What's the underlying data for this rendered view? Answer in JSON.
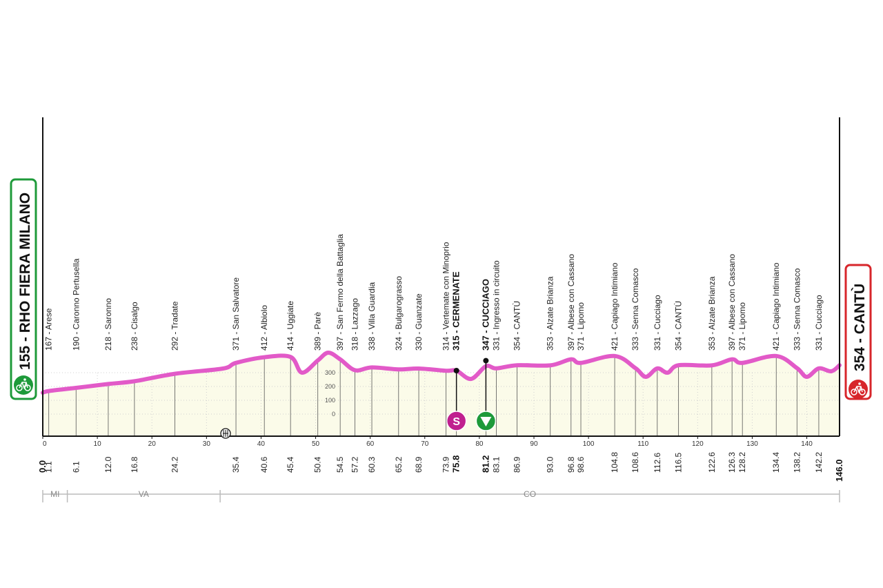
{
  "start": {
    "label": "155 - RHO FIERA MILANO",
    "color": "#1e9a3a"
  },
  "finish": {
    "label": "354 - CANTÙ",
    "color": "#d7262b"
  },
  "colors": {
    "profile_line": "#e25ac8",
    "profile_fill": "#fbfbe9",
    "grid": "#cfcfcf",
    "axis": "#111111",
    "sprint": "#c0208f",
    "checkpoint": "#1e9a3a"
  },
  "icons": {
    "start": "bicycle-icon",
    "finish": "bicycle-icon",
    "feed": "feed-zone-icon",
    "sprint": "sprint-icon",
    "checkpoint": "triangle-down-icon"
  },
  "markers": {
    "sprint_label": "S"
  },
  "chart_data": {
    "type": "area",
    "title": "",
    "xlabel": "",
    "ylabel": "",
    "xlim": [
      0,
      146
    ],
    "ylim": [
      0,
      400
    ],
    "grid": true,
    "x_ticks": [
      0,
      10,
      20,
      30,
      40,
      50,
      60,
      70,
      80,
      90,
      100,
      110,
      120,
      130,
      140
    ],
    "y_ticks": [
      0,
      100,
      200,
      300
    ],
    "profile": [
      [
        0,
        155
      ],
      [
        1.1,
        167
      ],
      [
        6.1,
        190
      ],
      [
        12.0,
        218
      ],
      [
        16.8,
        238
      ],
      [
        24.2,
        292
      ],
      [
        33.0,
        330
      ],
      [
        35.4,
        371
      ],
      [
        40.6,
        412
      ],
      [
        45.4,
        414
      ],
      [
        47.5,
        300
      ],
      [
        50.4,
        389
      ],
      [
        52.3,
        445
      ],
      [
        54.5,
        397
      ],
      [
        57.2,
        318
      ],
      [
        60.3,
        338
      ],
      [
        65.2,
        324
      ],
      [
        68.9,
        330
      ],
      [
        73.9,
        314
      ],
      [
        75.8,
        315
      ],
      [
        78.5,
        255
      ],
      [
        81.2,
        347
      ],
      [
        83.1,
        331
      ],
      [
        86.9,
        354
      ],
      [
        93.0,
        353
      ],
      [
        96.8,
        397
      ],
      [
        98.6,
        371
      ],
      [
        104.8,
        421
      ],
      [
        108.6,
        333
      ],
      [
        110.5,
        270
      ],
      [
        112.6,
        331
      ],
      [
        114.5,
        300
      ],
      [
        116.5,
        354
      ],
      [
        122.6,
        353
      ],
      [
        126.3,
        397
      ],
      [
        128.2,
        371
      ],
      [
        134.4,
        421
      ],
      [
        138.2,
        333
      ],
      [
        140.0,
        270
      ],
      [
        142.2,
        331
      ],
      [
        144.5,
        310
      ],
      [
        146.0,
        354
      ]
    ],
    "places": [
      {
        "km": 1.1,
        "km_label": "1.1",
        "text": "167 - Arese"
      },
      {
        "km": 6.1,
        "km_label": "6.1",
        "text": "190 - Caronno Pertusella"
      },
      {
        "km": 12.0,
        "km_label": "12.0",
        "text": "218 - Saronno"
      },
      {
        "km": 16.8,
        "km_label": "16.8",
        "text": "238 - Cisalgo"
      },
      {
        "km": 24.2,
        "km_label": "24.2",
        "text": "292 - Tradate"
      },
      {
        "km": 35.4,
        "km_label": "35.4",
        "text": "371 - San Salvatore"
      },
      {
        "km": 40.6,
        "km_label": "40.6",
        "text": "412 - Albiolo"
      },
      {
        "km": 45.4,
        "km_label": "45.4",
        "text": "414 - Uggiate"
      },
      {
        "km": 50.4,
        "km_label": "50.4",
        "text": "389 - Parè"
      },
      {
        "km": 54.5,
        "km_label": "54.5",
        "text": "397 - San Fermo della Battaglia"
      },
      {
        "km": 57.2,
        "km_label": "57.2",
        "text": "318 - Lazzago"
      },
      {
        "km": 60.3,
        "km_label": "60.3",
        "text": "338 - Villa Guardia"
      },
      {
        "km": 65.2,
        "km_label": "65.2",
        "text": "324 - Bulgarograsso"
      },
      {
        "km": 68.9,
        "km_label": "68.9",
        "text": "330 - Guanzate"
      },
      {
        "km": 73.9,
        "km_label": "73.9",
        "text": "314 - Vertemate con Minoprio"
      },
      {
        "km": 75.8,
        "km_label": "75.8",
        "text": "315 - CERMENATE",
        "bold": true
      },
      {
        "km": 81.2,
        "km_label": "81.2",
        "text": "347 - CUCCIAGO",
        "bold": true
      },
      {
        "km": 83.1,
        "km_label": "83.1",
        "text": "331 - Ingresso in circuito"
      },
      {
        "km": 86.9,
        "km_label": "86.9",
        "text": "354 - CANTÙ"
      },
      {
        "km": 93.0,
        "km_label": "93.0",
        "text": "353 - Alzate Brianza"
      },
      {
        "km": 96.8,
        "km_label": "96.8",
        "text": "397 - Albese con Cassano"
      },
      {
        "km": 98.6,
        "km_label": "98.6",
        "text": "371 - Lipomo"
      },
      {
        "km": 104.8,
        "km_label": "104.8",
        "text": "421 - Capiago Intimiano"
      },
      {
        "km": 108.6,
        "km_label": "108.6",
        "text": "333 - Senna Comasco"
      },
      {
        "km": 112.6,
        "km_label": "112.6",
        "text": "331 - Cucciago"
      },
      {
        "km": 116.5,
        "km_label": "116.5",
        "text": "354 - CANTÙ"
      },
      {
        "km": 122.6,
        "km_label": "122.6",
        "text": "353 - Alzate Brianza"
      },
      {
        "km": 126.3,
        "km_label": "126.3",
        "text": "397 - Albese con Cassano"
      },
      {
        "km": 128.2,
        "km_label": "128.2",
        "text": "371 - Lipomo"
      },
      {
        "km": 134.4,
        "km_label": "134.4",
        "text": "421 - Capiago Intimiano"
      },
      {
        "km": 138.2,
        "km_label": "138.2",
        "text": "333 - Senna Comasco"
      },
      {
        "km": 142.2,
        "km_label": "142.2",
        "text": "331 - Cucciago"
      }
    ],
    "start_km": {
      "km": 0,
      "label": "0.0"
    },
    "finish_km": {
      "km": 146.0,
      "label": "146.0"
    },
    "sprint_km": 75.8,
    "checkpoint_km": 81.2,
    "feed_km": 33.5,
    "provinces": [
      {
        "from": 0,
        "to": 4.5,
        "label": "MI"
      },
      {
        "from": 4.5,
        "to": 32.5,
        "label": "VA"
      },
      {
        "from": 32.5,
        "to": 146,
        "label": "CO"
      }
    ]
  }
}
